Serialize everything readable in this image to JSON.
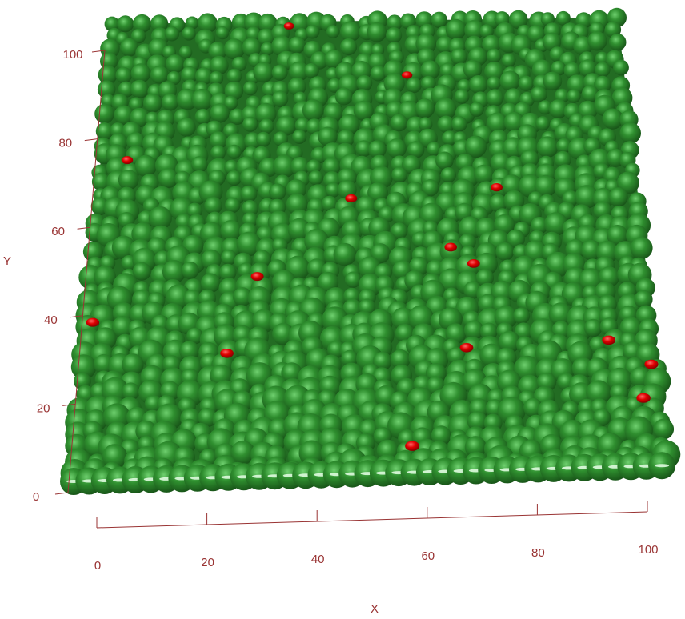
{
  "chart_data": {
    "type": "scatter",
    "plot_style": "3d-surface-spheres-view-from-above",
    "title": "",
    "xlabel": "X",
    "ylabel": "Y",
    "xlim": [
      0,
      100
    ],
    "ylim": [
      0,
      108
    ],
    "x_ticks": [
      0,
      20,
      40,
      60,
      80,
      100
    ],
    "y_ticks": [
      0,
      20,
      40,
      60,
      80,
      100
    ],
    "grid": false,
    "legend": "none",
    "series": [
      {
        "color": "#2f8a2f",
        "description_points": "dense packed spheres filling domain",
        "fill_extent": {
          "x": [
            0,
            100
          ],
          "y": [
            0,
            108
          ]
        }
      },
      {
        "color": "#e00000",
        "points": [
          {
            "x": 35,
            "y": 107
          },
          {
            "x": 58,
            "y": 95
          },
          {
            "x": 5,
            "y": 76
          },
          {
            "x": 74,
            "y": 68
          },
          {
            "x": 47,
            "y": 66
          },
          {
            "x": 65,
            "y": 54
          },
          {
            "x": 69,
            "y": 50
          },
          {
            "x": 30,
            "y": 48
          },
          {
            "x": 1,
            "y": 38
          },
          {
            "x": 25,
            "y": 30
          },
          {
            "x": 67,
            "y": 30
          },
          {
            "x": 92,
            "y": 31
          },
          {
            "x": 99,
            "y": 25
          },
          {
            "x": 97,
            "y": 17
          },
          {
            "x": 57,
            "y": 7
          }
        ]
      }
    ],
    "axis_color": "#993333",
    "tick_label_color": "#993333"
  }
}
